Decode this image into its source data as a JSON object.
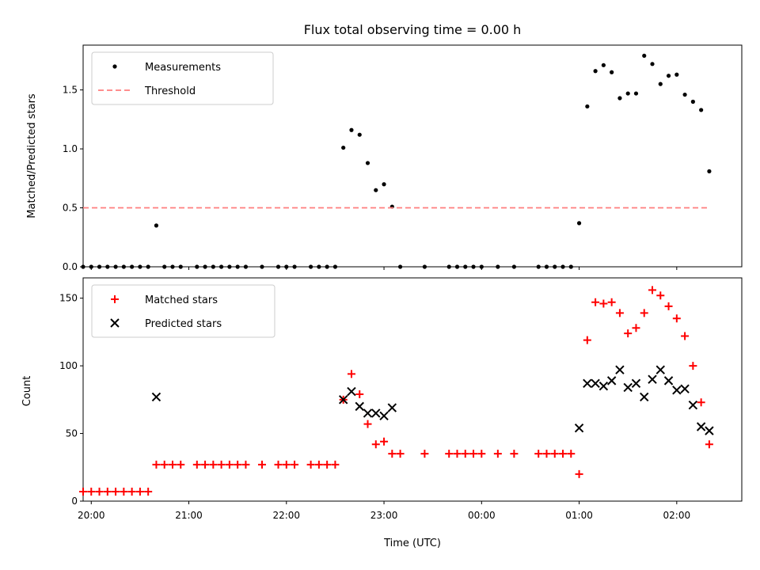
{
  "chart_data": [
    {
      "type": "scatter",
      "title": "Flux total observing time = 0.00 h",
      "ylabel": "Matched/Predicted stars",
      "xlim": [
        "19:55",
        "02:40"
      ],
      "ylim": [
        0,
        1.88
      ],
      "yticks": [
        0.0,
        0.5,
        1.0,
        1.5
      ],
      "ytick_labels": [
        "0.0",
        "0.5",
        "1.0",
        "1.5"
      ],
      "legend_position": "top-left",
      "grid": false,
      "series": [
        {
          "name": "Measurements",
          "marker": "dot",
          "color": "#000000",
          "x": [
            "19:55",
            "20:00",
            "20:05",
            "20:10",
            "20:15",
            "20:20",
            "20:25",
            "20:30",
            "20:35",
            "20:40",
            "20:45",
            "20:50",
            "20:55",
            "21:05",
            "21:10",
            "21:15",
            "21:20",
            "21:25",
            "21:30",
            "21:35",
            "21:45",
            "21:55",
            "22:00",
            "22:05",
            "22:15",
            "22:20",
            "22:25",
            "22:30",
            "22:35",
            "22:40",
            "22:45",
            "22:50",
            "22:55",
            "23:00",
            "23:05",
            "23:10",
            "23:25",
            "23:40",
            "23:45",
            "23:50",
            "23:55",
            "24:00",
            "24:10",
            "24:20",
            "24:35",
            "24:40",
            "24:45",
            "24:50",
            "24:55",
            "25:00",
            "25:05",
            "25:10",
            "25:15",
            "25:20",
            "25:25",
            "25:30",
            "25:35",
            "25:40",
            "25:45",
            "25:50",
            "25:55",
            "26:00",
            "26:05",
            "26:10",
            "26:15",
            "26:20"
          ],
          "y": [
            0,
            0,
            0,
            0,
            0,
            0,
            0,
            0,
            0,
            0.35,
            0,
            0,
            0,
            0,
            0,
            0,
            0,
            0,
            0,
            0,
            0,
            0,
            0,
            0,
            0,
            0,
            0,
            0,
            1.01,
            1.16,
            1.12,
            0.88,
            0.65,
            0.7,
            0.51,
            0,
            0,
            0,
            0,
            0,
            0,
            0,
            0,
            0,
            0,
            0,
            0,
            0,
            0,
            0.37,
            1.36,
            1.66,
            1.71,
            1.65,
            1.43,
            1.47,
            1.47,
            1.79,
            1.72,
            1.55,
            1.62,
            1.63,
            1.46,
            1.4,
            1.33,
            0.81
          ]
        },
        {
          "name": "Threshold",
          "marker": "dashed-line",
          "color": "#ff7f7f",
          "x": [
            "19:55",
            "26:20"
          ],
          "y": [
            0.5,
            0.5
          ]
        }
      ]
    },
    {
      "type": "scatter",
      "xlabel": "Time (UTC)",
      "ylabel": "Count",
      "xlim": [
        "19:55",
        "02:40"
      ],
      "ylim": [
        0,
        165
      ],
      "xticks": [
        "20:00",
        "21:00",
        "22:00",
        "23:00",
        "24:00",
        "25:00",
        "26:00"
      ],
      "xtick_labels": [
        "20:00",
        "21:00",
        "22:00",
        "23:00",
        "00:00",
        "01:00",
        "02:00"
      ],
      "yticks": [
        0,
        50,
        100,
        150
      ],
      "ytick_labels": [
        "0",
        "50",
        "100",
        "150"
      ],
      "legend_position": "top-left",
      "grid": false,
      "series": [
        {
          "name": "Matched stars",
          "marker": "plus",
          "color": "#ff0000",
          "x": [
            "19:55",
            "20:00",
            "20:05",
            "20:10",
            "20:15",
            "20:20",
            "20:25",
            "20:30",
            "20:35",
            "20:40",
            "20:45",
            "20:50",
            "20:55",
            "21:05",
            "21:10",
            "21:15",
            "21:20",
            "21:25",
            "21:30",
            "21:35",
            "21:45",
            "21:55",
            "22:00",
            "22:05",
            "22:15",
            "22:20",
            "22:25",
            "22:30",
            "22:35",
            "22:40",
            "22:45",
            "22:50",
            "22:55",
            "23:00",
            "23:05",
            "23:10",
            "23:25",
            "23:40",
            "23:45",
            "23:50",
            "23:55",
            "24:00",
            "24:10",
            "24:20",
            "24:35",
            "24:40",
            "24:45",
            "24:50",
            "24:55",
            "25:00",
            "25:05",
            "25:10",
            "25:15",
            "25:20",
            "25:25",
            "25:30",
            "25:35",
            "25:40",
            "25:45",
            "25:50",
            "25:55",
            "26:00",
            "26:05",
            "26:10",
            "26:15",
            "26:20"
          ],
          "y": [
            7,
            7,
            7,
            7,
            7,
            7,
            7,
            7,
            7,
            27,
            27,
            27,
            27,
            27,
            27,
            27,
            27,
            27,
            27,
            27,
            27,
            27,
            27,
            27,
            27,
            27,
            27,
            27,
            75,
            94,
            79,
            57,
            42,
            44,
            35,
            35,
            35,
            35,
            35,
            35,
            35,
            35,
            35,
            35,
            35,
            35,
            35,
            35,
            35,
            20,
            119,
            147,
            146,
            147,
            139,
            124,
            128,
            139,
            156,
            152,
            144,
            135,
            122,
            100,
            73,
            42
          ]
        },
        {
          "name": "Predicted stars",
          "marker": "x",
          "color": "#000000",
          "x": [
            "20:40",
            "22:35",
            "22:40",
            "22:45",
            "22:50",
            "22:55",
            "23:00",
            "23:05",
            "25:00",
            "25:05",
            "25:10",
            "25:15",
            "25:20",
            "25:25",
            "25:30",
            "25:35",
            "25:40",
            "25:45",
            "25:50",
            "25:55",
            "26:00",
            "26:05",
            "26:10",
            "26:15",
            "26:20"
          ],
          "y": [
            77,
            75,
            81,
            70,
            65,
            65,
            63,
            69,
            54,
            87,
            87,
            85,
            89,
            97,
            84,
            87,
            77,
            90,
            97,
            89,
            82,
            83,
            71,
            55,
            52
          ]
        }
      ]
    }
  ]
}
